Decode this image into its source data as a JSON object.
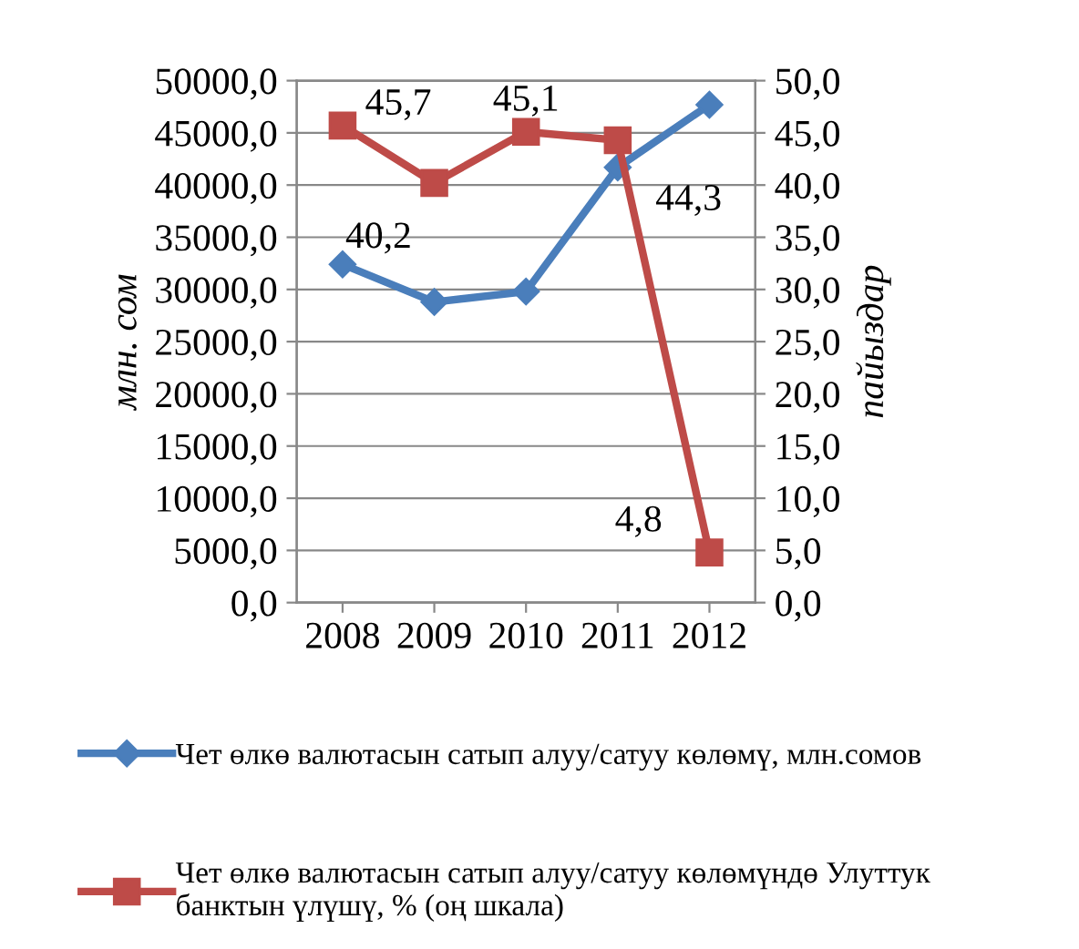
{
  "chart_data": {
    "type": "line",
    "categories": [
      "2008",
      "2009",
      "2010",
      "2011",
      "2012"
    ],
    "ylabel": "млн. сом",
    "y2label": "пайыздар",
    "ylim": [
      0,
      50000
    ],
    "yticks": [
      {
        "value": 0,
        "label": "0,0"
      },
      {
        "value": 5000,
        "label": "5000,0"
      },
      {
        "value": 10000,
        "label": "10000,0"
      },
      {
        "value": 15000,
        "label": "15000,0"
      },
      {
        "value": 20000,
        "label": "20000,0"
      },
      {
        "value": 25000,
        "label": "25000,0"
      },
      {
        "value": 30000,
        "label": "30000,0"
      },
      {
        "value": 35000,
        "label": "35000,0"
      },
      {
        "value": 40000,
        "label": "40000,0"
      },
      {
        "value": 45000,
        "label": "45000,0"
      },
      {
        "value": 50000,
        "label": "50000,0"
      }
    ],
    "y2lim": [
      0,
      50
    ],
    "y2ticks": [
      {
        "value": 0,
        "label": "0,0"
      },
      {
        "value": 5,
        "label": "5,0"
      },
      {
        "value": 10,
        "label": "10,0"
      },
      {
        "value": 15,
        "label": "15,0"
      },
      {
        "value": 20,
        "label": "20,0"
      },
      {
        "value": 25,
        "label": "25,0"
      },
      {
        "value": 30,
        "label": "30,0"
      },
      {
        "value": 35,
        "label": "35,0"
      },
      {
        "value": 40,
        "label": "40,0"
      },
      {
        "value": 45,
        "label": "45,0"
      },
      {
        "value": 50,
        "label": "50,0"
      }
    ],
    "grid": "y",
    "legend": "bottom",
    "series": [
      {
        "name": "Чет өлкө валютасын сатып алуу/сатуу көлөмү, млн.сомов",
        "color": "#4a7ebb",
        "marker": "diamond",
        "values": [
          32400,
          28800,
          29800,
          41700,
          47700
        ]
      },
      {
        "name": "Чет өлкө валютасын сатып алуу/сатуу көлөмүндө Улуттук\nбанктын үлүшү, % (оң шкала)",
        "color": "#be4b48",
        "marker": "square",
        "axis": "y2",
        "values": [
          45.7,
          40.2,
          45.1,
          44.3,
          4.8
        ],
        "value_labels": [
          "45,7",
          "40,2",
          "45,1",
          "44,3",
          "4,8"
        ]
      }
    ]
  }
}
